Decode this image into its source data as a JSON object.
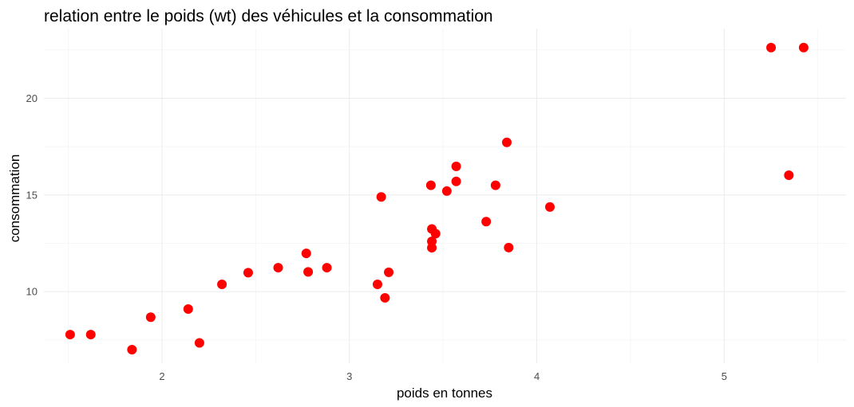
{
  "chart_data": {
    "type": "scatter",
    "title": "relation entre le poids (wt) des véhicules et la consommation",
    "xlabel": "poids en tonnes",
    "ylabel": "consommation",
    "xlim": [
      1.37,
      5.65
    ],
    "ylim": [
      6.3,
      23.6
    ],
    "x_ticks": [
      2,
      3,
      4,
      5
    ],
    "x_tick_labels": [
      "2",
      "3",
      "4",
      "5"
    ],
    "x_minor_ticks": [
      1.5,
      2.5,
      3.5,
      4.5,
      5.5
    ],
    "y_ticks": [
      10,
      15,
      20
    ],
    "y_tick_labels": [
      "10",
      "15",
      "20"
    ],
    "y_minor_ticks": [
      7.5,
      12.5,
      17.5,
      22.5
    ],
    "grid": true,
    "point_color": "#ff0000",
    "series": [
      {
        "points": [
          {
            "x": 1.51,
            "y": 7.78
          },
          {
            "x": 1.62,
            "y": 7.78
          },
          {
            "x": 1.84,
            "y": 7.0
          },
          {
            "x": 1.94,
            "y": 8.68
          },
          {
            "x": 2.14,
            "y": 9.1
          },
          {
            "x": 2.2,
            "y": 7.35
          },
          {
            "x": 2.32,
            "y": 10.38
          },
          {
            "x": 2.46,
            "y": 10.98
          },
          {
            "x": 2.62,
            "y": 11.24
          },
          {
            "x": 2.77,
            "y": 11.98
          },
          {
            "x": 2.78,
            "y": 11.02
          },
          {
            "x": 2.88,
            "y": 11.24
          },
          {
            "x": 3.15,
            "y": 10.38
          },
          {
            "x": 3.17,
            "y": 14.9
          },
          {
            "x": 3.19,
            "y": 9.68
          },
          {
            "x": 3.21,
            "y": 11.0
          },
          {
            "x": 3.435,
            "y": 15.5
          },
          {
            "x": 3.44,
            "y": 13.24
          },
          {
            "x": 3.44,
            "y": 12.6
          },
          {
            "x": 3.44,
            "y": 12.27
          },
          {
            "x": 3.46,
            "y": 13.0
          },
          {
            "x": 3.52,
            "y": 15.2
          },
          {
            "x": 3.57,
            "y": 16.48
          },
          {
            "x": 3.57,
            "y": 15.7
          },
          {
            "x": 3.73,
            "y": 13.62
          },
          {
            "x": 3.78,
            "y": 15.5
          },
          {
            "x": 3.84,
            "y": 17.72
          },
          {
            "x": 3.85,
            "y": 12.28
          },
          {
            "x": 4.07,
            "y": 14.38
          },
          {
            "x": 5.25,
            "y": 22.62
          },
          {
            "x": 5.345,
            "y": 16.02
          },
          {
            "x": 5.424,
            "y": 22.62
          }
        ]
      }
    ]
  }
}
